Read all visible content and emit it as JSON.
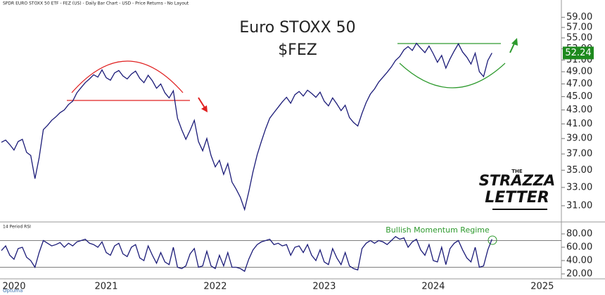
{
  "header": "SPDR EURO STOXX 50 ETF - FEZ (US) - Daily Bar Chart - USD - Price Returns - No Layout",
  "logo": {
    "line1": "THE",
    "line2": "STRAZZA",
    "line3": "LETTER"
  },
  "footer": "Optuma",
  "chart_data": [
    {
      "type": "line",
      "title": "Euro STOXX 50",
      "subtitle": "$FEZ",
      "color": "#1b1b78",
      "log_scale": true,
      "ylim": [
        29.4,
        62.6
      ],
      "yticks": [
        {
          "value": 31,
          "label": "31.00"
        },
        {
          "value": 33,
          "label": "33.00"
        },
        {
          "value": 35,
          "label": "35.00"
        },
        {
          "value": 37,
          "label": "37.00"
        },
        {
          "value": 39,
          "label": "39.00"
        },
        {
          "value": 41,
          "label": "41.00"
        },
        {
          "value": 43,
          "label": "43.00"
        },
        {
          "value": 45,
          "label": "45.00"
        },
        {
          "value": 47,
          "label": "47.00"
        },
        {
          "value": 49,
          "label": "49.00"
        },
        {
          "value": 51,
          "label": "51.00"
        },
        {
          "value": 53,
          "label": "53.00"
        },
        {
          "value": 55,
          "label": "55.00"
        },
        {
          "value": 57,
          "label": "57.00"
        },
        {
          "value": 59,
          "label": "59.00"
        }
      ],
      "values": [
        38.5,
        38.8,
        38.2,
        37.5,
        38.6,
        38.9,
        37.2,
        36.8,
        34.0,
        36.5,
        40.2,
        40.8,
        41.5,
        42.0,
        42.6,
        43.0,
        43.8,
        44.3,
        45.6,
        46.4,
        47.2,
        47.8,
        48.5,
        48.1,
        49.3,
        48.0,
        47.6,
        48.8,
        49.2,
        48.3,
        47.8,
        48.6,
        49.1,
        47.9,
        47.2,
        48.4,
        47.5,
        46.3,
        47.0,
        45.6,
        44.8,
        45.9,
        41.8,
        40.2,
        38.9,
        40.1,
        41.5,
        38.6,
        37.4,
        39.0,
        36.8,
        35.4,
        36.2,
        34.5,
        35.8,
        33.6,
        32.8,
        31.9,
        30.6,
        32.5,
        34.8,
        36.9,
        38.6,
        40.3,
        41.8,
        42.6,
        43.4,
        44.2,
        44.9,
        44.0,
        45.3,
        45.8,
        45.1,
        46.0,
        45.5,
        44.9,
        45.7,
        44.3,
        43.6,
        44.8,
        43.9,
        42.9,
        43.7,
        41.9,
        41.2,
        40.7,
        42.5,
        44.1,
        45.4,
        46.2,
        47.3,
        48.1,
        48.9,
        49.8,
        50.9,
        51.6,
        52.8,
        53.4,
        52.7,
        54.0,
        53.1,
        52.3,
        53.5,
        52.1,
        50.6,
        51.8,
        49.6,
        51.2,
        52.6,
        53.9,
        52.4,
        51.5,
        50.3,
        52.2,
        49.0,
        48.2,
        50.9,
        52.24,
        null,
        null,
        null,
        null,
        null,
        null,
        null,
        null,
        null,
        null,
        null,
        null
      ]
    },
    {
      "type": "line",
      "title": "14 Period RSI",
      "color": "#1b1b78",
      "annotation": "Bullish Momentum Regime",
      "ylim": [
        12.6,
        95.8
      ],
      "yticks": [
        {
          "value": 20,
          "label": "20.00"
        },
        {
          "value": 40,
          "label": "40.00"
        },
        {
          "value": 60,
          "label": "60.00"
        },
        {
          "value": 80,
          "label": "80.00"
        }
      ],
      "reference_lines": [
        30,
        70
      ],
      "categories": [
        "2020",
        null,
        null,
        null,
        null,
        null,
        null,
        null,
        null,
        null,
        null,
        null,
        null,
        null,
        null,
        null,
        null,
        null,
        null,
        null,
        null,
        null,
        null,
        null,
        null,
        "2021",
        null,
        null,
        null,
        null,
        null,
        null,
        null,
        null,
        null,
        null,
        null,
        null,
        null,
        null,
        null,
        null,
        null,
        null,
        null,
        null,
        null,
        null,
        null,
        null,
        null,
        "2022",
        null,
        null,
        null,
        null,
        null,
        null,
        null,
        null,
        null,
        null,
        null,
        null,
        null,
        null,
        null,
        null,
        null,
        null,
        null,
        null,
        null,
        null,
        null,
        null,
        null,
        "2023",
        null,
        null,
        null,
        null,
        null,
        null,
        null,
        null,
        null,
        null,
        null,
        null,
        null,
        null,
        null,
        null,
        null,
        null,
        null,
        null,
        null,
        null,
        null,
        null,
        null,
        "2024",
        null,
        null,
        null,
        null,
        null,
        null,
        null,
        null,
        null,
        null,
        null,
        null,
        null,
        null,
        null,
        null,
        null,
        null,
        null,
        null,
        null,
        null,
        null,
        null,
        null,
        "2025"
      ],
      "values": [
        55,
        62,
        48,
        42,
        58,
        60,
        45,
        40,
        30,
        52,
        70,
        66,
        62,
        64,
        67,
        60,
        66,
        62,
        68,
        70,
        72,
        66,
        64,
        60,
        68,
        52,
        48,
        62,
        66,
        50,
        46,
        60,
        64,
        44,
        40,
        62,
        48,
        36,
        52,
        38,
        34,
        60,
        30,
        28,
        32,
        50,
        58,
        30,
        32,
        54,
        32,
        28,
        48,
        32,
        52,
        30,
        30,
        28,
        24,
        42,
        56,
        64,
        68,
        70,
        72,
        64,
        66,
        62,
        64,
        48,
        60,
        62,
        52,
        64,
        48,
        40,
        56,
        38,
        34,
        58,
        44,
        34,
        52,
        32,
        28,
        26,
        58,
        66,
        70,
        66,
        70,
        68,
        64,
        70,
        76,
        72,
        74,
        60,
        68,
        72,
        56,
        48,
        64,
        40,
        38,
        60,
        34,
        58,
        66,
        70,
        56,
        44,
        38,
        60,
        30,
        32,
        56,
        72,
        null,
        null,
        null,
        null,
        null,
        null,
        null,
        null,
        null,
        null,
        null,
        null
      ]
    }
  ]
}
